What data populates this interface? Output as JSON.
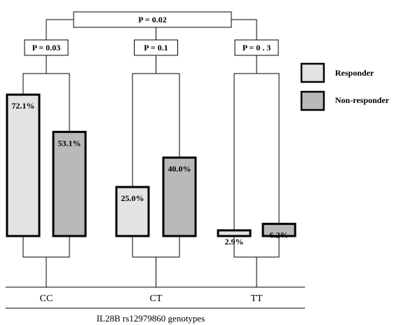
{
  "chart_data": {
    "type": "bar",
    "categories": [
      "CC",
      "CT",
      "TT"
    ],
    "series": [
      {
        "name": "Responder",
        "values": [
          72.1,
          25.0,
          2.9
        ],
        "labels": [
          "72.1%",
          "25.0%",
          "2.9%"
        ],
        "color": "#e3e3e3"
      },
      {
        "name": "Non-responder",
        "values": [
          53.1,
          40.0,
          6.2
        ],
        "labels": [
          "53.1%",
          "40.0%",
          "6.2%"
        ],
        "color": "#b9b9b9"
      }
    ],
    "xlabel": "IL28B rs12979860 genotypes",
    "ylabel": "",
    "ylim": [
      0,
      100
    ],
    "legend": "top-right",
    "grid": false,
    "annotations": {
      "overall": "P = 0.02",
      "groups": [
        "P = 0.03",
        "P = 0.1",
        "P = 0 . 3"
      ]
    }
  }
}
